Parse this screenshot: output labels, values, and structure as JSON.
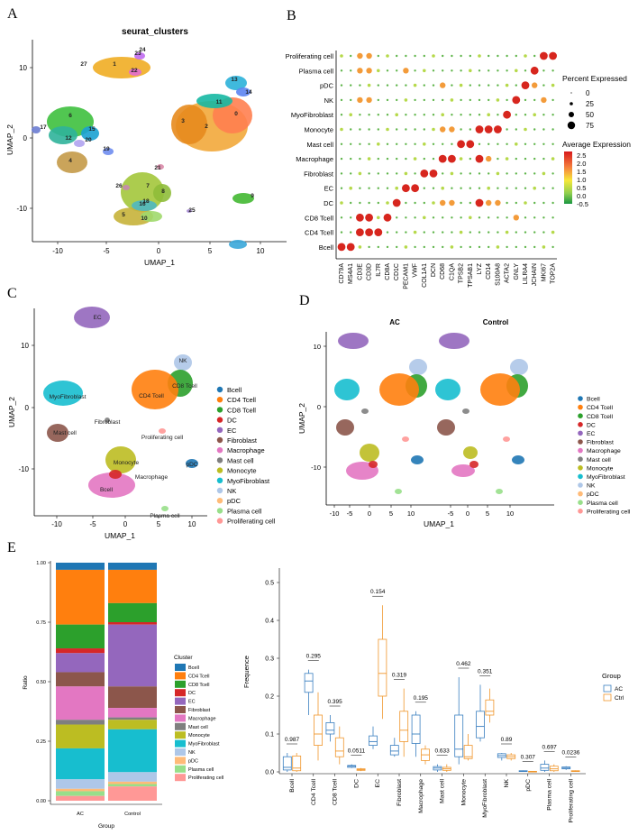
{
  "panels": {
    "A": {
      "letter": "A",
      "title": "seurat_clusters",
      "xlabel": "UMAP_1",
      "ylabel": "UMAP_2",
      "xticks": [
        "-10",
        "-5",
        "0",
        "5",
        "10"
      ],
      "yticks": [
        "10",
        "0",
        "-10"
      ],
      "cluster_labels": [
        "0",
        "1",
        "2",
        "3",
        "4",
        "5",
        "6",
        "7",
        "8",
        "9",
        "10",
        "11",
        "12",
        "13",
        "14",
        "15",
        "16",
        "17",
        "18",
        "19",
        "20",
        "21",
        "22",
        "23",
        "24",
        "25",
        "26",
        "27"
      ]
    },
    "B": {
      "letter": "B",
      "rows": [
        "Proliferating cell",
        "Plasma cell",
        "pDC",
        "NK",
        "MyoFibroblast",
        "Monocyte",
        "Mast cell",
        "Macrophage",
        "Fibroblast",
        "EC",
        "DC",
        "CD8 Tcell",
        "CD4 Tcell",
        "Bcell"
      ],
      "genes": [
        "CD79A",
        "MS4A1",
        "CD3E",
        "CD3D",
        "IL7R",
        "CD8A",
        "CD1C",
        "PECAM1",
        "VWF",
        "COL1A1",
        "DCN",
        "CD68",
        "C1QA",
        "TPSB2",
        "TPSAB1",
        "LYZ",
        "CD14",
        "S100A8",
        "ACTA2",
        "GNLY",
        "LILRA4",
        "JCHAIN",
        "MKI67",
        "TOP2A"
      ],
      "size_legend_title": "Percent Expressed",
      "size_legend": [
        "0",
        "25",
        "50",
        "75"
      ],
      "color_legend_title": "Average Expression",
      "color_legend": [
        "2.5",
        "2.0",
        "1.5",
        "1.0",
        "0.5",
        "0.0",
        "-0.5"
      ]
    },
    "C": {
      "letter": "C",
      "xlabel": "UMAP_1",
      "ylabel": "UMAP_2",
      "xticks": [
        "-10",
        "-5",
        "0",
        "5",
        "10"
      ],
      "yticks": [
        "10",
        "0",
        "-10"
      ],
      "in_plot_labels": [
        "EC",
        "NK",
        "CD8 Tcell",
        "CD4 Tcell",
        "MyoFibroblast",
        "Mast cell",
        "Fibroblast",
        "Proliferating cell",
        "Monocyte",
        "Bcell",
        "pDC",
        "Macrophage",
        "Plasma cell"
      ]
    },
    "D": {
      "letter": "D",
      "left_title": "AC",
      "right_title": "Control",
      "xlabel": "UMAP_1",
      "ylabel": "UMAP_2",
      "xticks_left": [
        "-10",
        "-5",
        "0",
        "5",
        "10"
      ],
      "xticks_right": [
        "-5",
        "0",
        "5",
        "10"
      ],
      "yticks": [
        "10",
        "0",
        "-10"
      ]
    },
    "E": {
      "letter": "E"
    }
  },
  "cell_types": [
    {
      "name": "Bcell",
      "color": "#1f77b4"
    },
    {
      "name": "CD4 Tcell",
      "color": "#ff7f0e"
    },
    {
      "name": "CD8 Tcell",
      "color": "#2ca02c"
    },
    {
      "name": "DC",
      "color": "#d62728"
    },
    {
      "name": "EC",
      "color": "#9467bd"
    },
    {
      "name": "Fibroblast",
      "color": "#8c564b"
    },
    {
      "name": "Macrophage",
      "color": "#e377c2"
    },
    {
      "name": "Mast cell",
      "color": "#7f7f7f"
    },
    {
      "name": "Monocyte",
      "color": "#bcbd22"
    },
    {
      "name": "MyoFibroblast",
      "color": "#17becf"
    },
    {
      "name": "NK",
      "color": "#aec7e8"
    },
    {
      "name": "pDC",
      "color": "#ffbb78"
    },
    {
      "name": "Plasma cell",
      "color": "#98df8a"
    },
    {
      "name": "Proliferating cell",
      "color": "#ff9896"
    }
  ],
  "chart_data": [
    {
      "type": "bar",
      "stacked": true,
      "ylabel": "Ratio",
      "xlabel": "Group",
      "yticks": [
        "0.00",
        "0.25",
        "0.50",
        "0.75",
        "1.00"
      ],
      "legend_title": "Cluster",
      "categories": [
        "AC",
        "Control"
      ],
      "series": [
        {
          "name": "Bcell",
          "values": [
            0.03,
            0.03
          ]
        },
        {
          "name": "CD4 Tcell",
          "values": [
            0.23,
            0.14
          ]
        },
        {
          "name": "CD8 Tcell",
          "values": [
            0.1,
            0.08
          ]
        },
        {
          "name": "DC",
          "values": [
            0.02,
            0.01
          ]
        },
        {
          "name": "EC",
          "values": [
            0.08,
            0.26
          ]
        },
        {
          "name": "Fibroblast",
          "values": [
            0.06,
            0.09
          ]
        },
        {
          "name": "Macrophage",
          "values": [
            0.14,
            0.04
          ]
        },
        {
          "name": "Mast cell",
          "values": [
            0.02,
            0.01
          ]
        },
        {
          "name": "Monocyte",
          "values": [
            0.1,
            0.04
          ]
        },
        {
          "name": "MyoFibroblast",
          "values": [
            0.13,
            0.18
          ]
        },
        {
          "name": "NK",
          "values": [
            0.04,
            0.04
          ]
        },
        {
          "name": "pDC",
          "values": [
            0.01,
            0.01
          ]
        },
        {
          "name": "Plasma cell",
          "values": [
            0.02,
            0.01
          ]
        },
        {
          "name": "Proliferating cell",
          "values": [
            0.02,
            0.06
          ]
        }
      ]
    },
    {
      "type": "box",
      "ylabel": "Frequence",
      "yticks": [
        "0.0",
        "0.1",
        "0.2",
        "0.3",
        "0.4",
        "0.5"
      ],
      "ylim": [
        0,
        0.52
      ],
      "legend_title": "Group",
      "groups": [
        {
          "name": "AC",
          "color": "#3a7fc0"
        },
        {
          "name": "Ctrl",
          "color": "#f0962c"
        }
      ],
      "categories": [
        "Bcell",
        "CD4 Tcell",
        "CD8 Tcell",
        "DC",
        "EC",
        "Fibroblast",
        "Macrophage",
        "Mast cell",
        "Monocyte",
        "MyoFibroblast",
        "NK",
        "pDC",
        "Plasma cell",
        "Proliferating cell"
      ],
      "pvalues": [
        "0.987",
        "0.295",
        "0.395",
        "0.0511",
        "0.154",
        "0.319",
        "0.195",
        "0.633",
        "0.462",
        "0.351",
        "0.89",
        "0.307",
        "0.697",
        "0.0236"
      ],
      "boxes": [
        {
          "AC": [
            0.0,
            0.005,
            0.012,
            0.04,
            0.05
          ],
          "Ctrl": [
            0.0,
            0.003,
            0.01,
            0.042,
            0.05
          ]
        },
        {
          "AC": [
            0.15,
            0.21,
            0.24,
            0.26,
            0.27
          ],
          "Ctrl": [
            0.03,
            0.07,
            0.1,
            0.15,
            0.21
          ]
        },
        {
          "AC": [
            0.08,
            0.1,
            0.11,
            0.13,
            0.15
          ],
          "Ctrl": [
            0.02,
            0.04,
            0.055,
            0.09,
            0.12
          ]
        },
        {
          "AC": [
            0.01,
            0.012,
            0.015,
            0.017,
            0.02
          ],
          "Ctrl": [
            0.002,
            0.004,
            0.006,
            0.008,
            0.01
          ]
        },
        {
          "AC": [
            0.06,
            0.07,
            0.08,
            0.095,
            0.12
          ],
          "Ctrl": [
            0.14,
            0.2,
            0.26,
            0.35,
            0.44
          ]
        },
        {
          "AC": [
            0.04,
            0.045,
            0.055,
            0.07,
            0.09
          ],
          "Ctrl": [
            0.04,
            0.08,
            0.11,
            0.16,
            0.22
          ]
        },
        {
          "AC": [
            0.04,
            0.075,
            0.1,
            0.15,
            0.16
          ],
          "Ctrl": [
            0.02,
            0.03,
            0.045,
            0.06,
            0.07
          ]
        },
        {
          "AC": [
            0.0,
            0.005,
            0.01,
            0.014,
            0.02
          ],
          "Ctrl": [
            0.0,
            0.004,
            0.008,
            0.012,
            0.02
          ]
        },
        {
          "AC": [
            0.02,
            0.04,
            0.06,
            0.15,
            0.25
          ],
          "Ctrl": [
            0.03,
            0.035,
            0.04,
            0.07,
            0.1
          ]
        },
        {
          "AC": [
            0.08,
            0.09,
            0.12,
            0.16,
            0.23
          ],
          "Ctrl": [
            0.13,
            0.15,
            0.16,
            0.19,
            0.22
          ]
        },
        {
          "AC": [
            0.03,
            0.038,
            0.043,
            0.048,
            0.05
          ],
          "Ctrl": [
            0.03,
            0.035,
            0.04,
            0.045,
            0.05
          ]
        },
        {
          "AC": [
            0.0,
            0.001,
            0.002,
            0.003,
            0.004
          ],
          "Ctrl": [
            0.0,
            0.0005,
            0.001,
            0.0015,
            0.002
          ]
        },
        {
          "AC": [
            0.0,
            0.004,
            0.01,
            0.02,
            0.03
          ],
          "Ctrl": [
            0.0,
            0.003,
            0.008,
            0.015,
            0.02
          ]
        },
        {
          "AC": [
            0.005,
            0.008,
            0.01,
            0.013,
            0.015
          ],
          "Ctrl": [
            0.0,
            0.001,
            0.002,
            0.003,
            0.004
          ]
        }
      ]
    }
  ]
}
